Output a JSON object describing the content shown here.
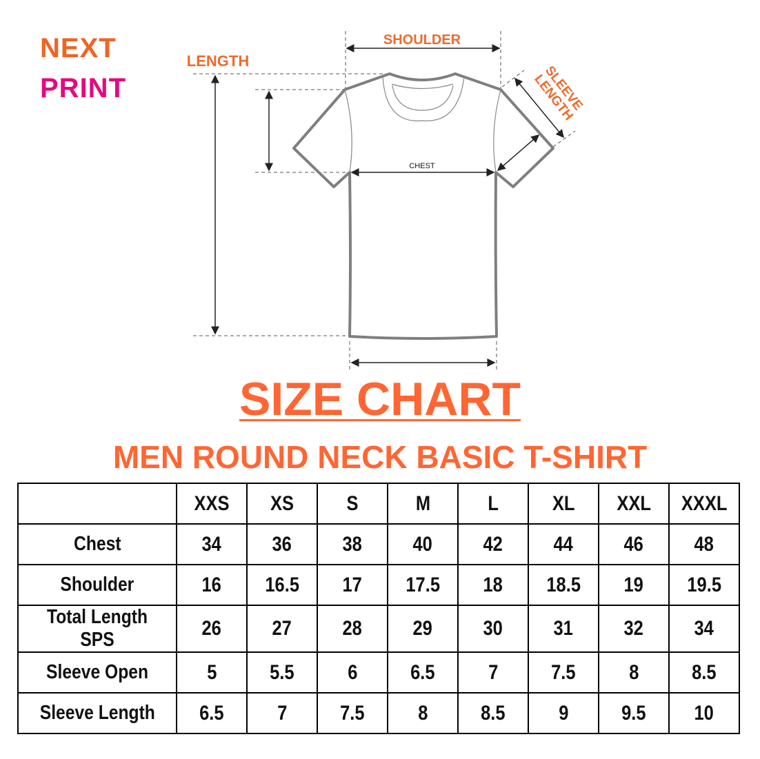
{
  "logo": {
    "line1": "NEXT",
    "line2": "PRINT",
    "colors": {
      "orange": "#ef6424",
      "magenta": "#e5097f"
    }
  },
  "diagram": {
    "labels": {
      "shoulder": "SHOULDER",
      "length": "LENGTH",
      "sleeve_length": "SLEEVE LENGTH",
      "chest": "CHEST"
    },
    "accent": "#ee6a2b",
    "outline": "#7f7f7f"
  },
  "title": "SIZE CHART",
  "subtitle": "MEN ROUND NECK BASIC T-SHIRT",
  "table": {
    "headers": [
      "",
      "XXS",
      "XS",
      "S",
      "M",
      "L",
      "XL",
      "XXL",
      "XXXL"
    ],
    "rows": [
      {
        "label": "Chest",
        "values": [
          "34",
          "36",
          "38",
          "40",
          "42",
          "44",
          "46",
          "48"
        ]
      },
      {
        "label": "Shoulder",
        "values": [
          "16",
          "16.5",
          "17",
          "17.5",
          "18",
          "18.5",
          "19",
          "19.5"
        ]
      },
      {
        "label": "Total Length SPS",
        "values": [
          "26",
          "27",
          "28",
          "29",
          "30",
          "31",
          "32",
          "34"
        ]
      },
      {
        "label": "Sleeve Open",
        "values": [
          "5",
          "5.5",
          "6",
          "6.5",
          "7",
          "7.5",
          "8",
          "8.5"
        ]
      },
      {
        "label": "Sleeve Length",
        "values": [
          "6.5",
          "7",
          "7.5",
          "8",
          "8.5",
          "9",
          "9.5",
          "10"
        ]
      }
    ]
  }
}
